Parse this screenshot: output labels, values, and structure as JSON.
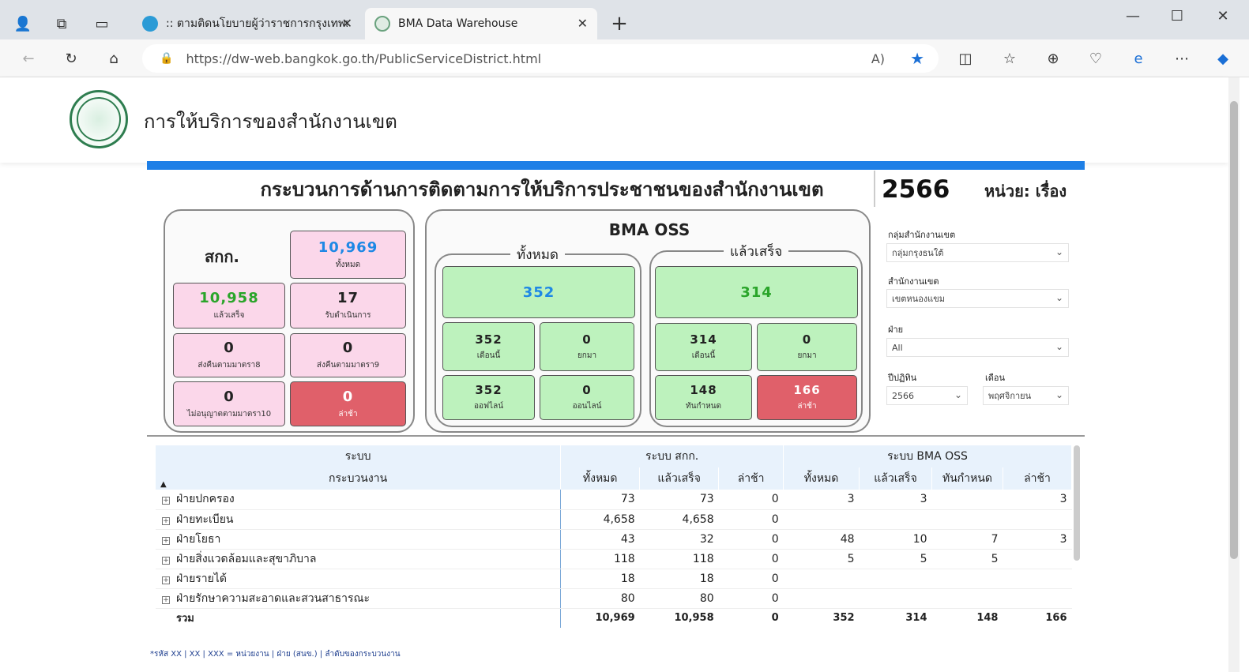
{
  "browser": {
    "tabs": [
      {
        "title": ":: ตามติดนโยบายผู้ว่าราชการกรุงเทพมหานคร",
        "active": false
      },
      {
        "title": "BMA Data Warehouse",
        "active": true
      }
    ],
    "new_tab": "+",
    "url": "https://dw-web.bangkok.go.th/PublicServiceDistrict.html"
  },
  "site": {
    "title": "การให้บริการของสำนักงานเขต"
  },
  "dashboard": {
    "title": "กระบวนการด้านการติดตามการให้บริการประชาชนของสำนักงานเขต",
    "year": "2566",
    "unit": "หน่วย: เรื่อง",
    "skk": {
      "label": "สกก.",
      "total": {
        "value": "10,969",
        "label": "ทั้งหมด"
      },
      "done": {
        "value": "10,958",
        "label": "แล้วเสร็จ"
      },
      "inprogress": {
        "value": "17",
        "label": "รับดำเนินการ"
      },
      "return8": {
        "value": "0",
        "label": "ส่งคืนตามมาตรา8"
      },
      "return9": {
        "value": "0",
        "label": "ส่งคืนตามมาตรา9"
      },
      "deny10": {
        "value": "0",
        "label": "ไม่อนุญาตตามมาตรา10"
      },
      "late": {
        "value": "0",
        "label": "ล่าช้า"
      }
    },
    "oss": {
      "label": "BMA OSS",
      "all": {
        "label": "ทั้งหมด",
        "total": "352",
        "month": {
          "value": "352",
          "label": "เดือนนี้"
        },
        "carry": {
          "value": "0",
          "label": "ยกมา"
        },
        "offline": {
          "value": "352",
          "label": "ออฟไลน์"
        },
        "online": {
          "value": "0",
          "label": "ออนไลน์"
        }
      },
      "done": {
        "label": "แล้วเสร็จ",
        "total": "314",
        "month": {
          "value": "314",
          "label": "เดือนนี้"
        },
        "carry": {
          "value": "0",
          "label": "ยกมา"
        },
        "ontime": {
          "value": "148",
          "label": "ทันกำหนด"
        },
        "late": {
          "value": "166",
          "label": "ล่าช้า"
        }
      }
    }
  },
  "filters": {
    "group": {
      "label": "กลุ่มสำนักงานเขต",
      "value": "กลุ่มกรุงธนใต้"
    },
    "district": {
      "label": "สำนักงานเขต",
      "value": "เขตหนองแขม"
    },
    "division": {
      "label": "ฝ่าย",
      "value": "All"
    },
    "year": {
      "label": "ปีปฏิทิน",
      "value": "2566"
    },
    "month": {
      "label": "เดือน",
      "value": "พฤศจิกายน"
    }
  },
  "table": {
    "group_headers": {
      "system": "ระบบ",
      "skk": "ระบบ สกก.",
      "oss": "ระบบ BMA OSS"
    },
    "headers": {
      "process": "กระบวนงาน",
      "total": "ทั้งหมด",
      "done": "แล้วเสร็จ",
      "late": "ล่าช้า",
      "oss_total": "ทั้งหมด",
      "oss_done": "แล้วเสร็จ",
      "oss_ontime": "ทันกำหนด",
      "oss_late": "ล่าช้า"
    },
    "rows": [
      {
        "name": "ฝ่ายปกครอง",
        "c": [
          "73",
          "73",
          "0",
          "3",
          "3",
          "",
          "3"
        ]
      },
      {
        "name": "ฝ่ายทะเบียน",
        "c": [
          "4,658",
          "4,658",
          "0",
          "",
          "",
          "",
          ""
        ]
      },
      {
        "name": "ฝ่ายโยธา",
        "c": [
          "43",
          "32",
          "0",
          "48",
          "10",
          "7",
          "3"
        ]
      },
      {
        "name": "ฝ่ายสิ่งแวดล้อมและสุขาภิบาล",
        "c": [
          "118",
          "118",
          "0",
          "5",
          "5",
          "5",
          ""
        ]
      },
      {
        "name": "ฝ่ายรายได้",
        "c": [
          "18",
          "18",
          "0",
          "",
          "",
          "",
          ""
        ]
      },
      {
        "name": "ฝ่ายรักษาความสะอาดและสวนสาธารณะ",
        "c": [
          "80",
          "80",
          "0",
          "",
          "",
          "",
          ""
        ]
      }
    ],
    "total": {
      "name": "รวม",
      "c": [
        "10,969",
        "10,958",
        "0",
        "352",
        "314",
        "148",
        "166"
      ]
    }
  },
  "footnote": "*รหัส XX | XX | XXX = หน่วยงาน | ฝ่าย (สนข.) | ลำดับของกระบวนงาน"
}
